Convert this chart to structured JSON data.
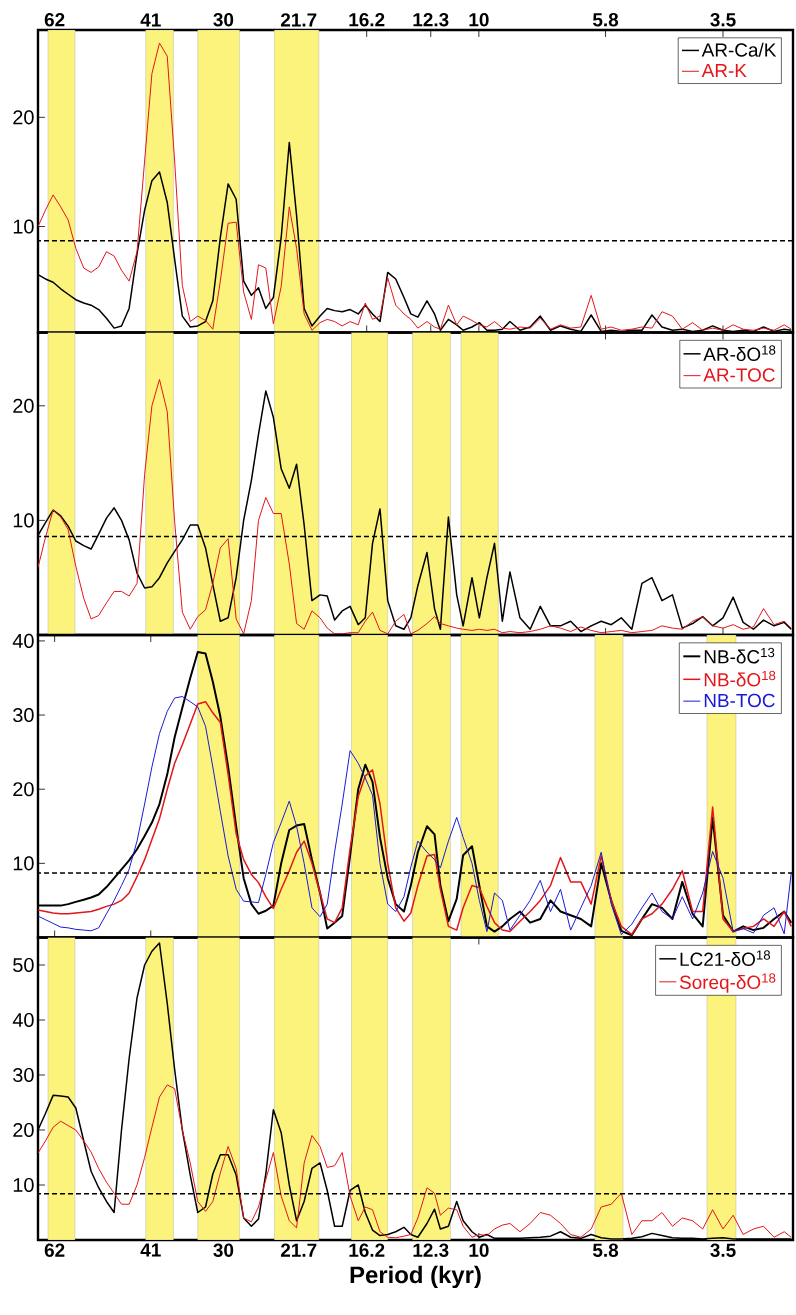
{
  "chart_data": [
    {
      "type": "line",
      "log": "x",
      "legend": "top right",
      "x": [
        66.6,
        64.5,
        62.4,
        60.4,
        58.5,
        56.6,
        54.7,
        53,
        51.3,
        49.6,
        48,
        46.5,
        45,
        43.5,
        42.1,
        40.8,
        39.5,
        38.2,
        37,
        35.8,
        34.6,
        33.5,
        32.4,
        31.4,
        30.4,
        29.4,
        28.4,
        27.5,
        26.6,
        25.8,
        25,
        24.2,
        23.4,
        22.6,
        21.9,
        21.2,
        20.5,
        19.8,
        19.2,
        18.6,
        18,
        17.4,
        16.8,
        16.3,
        15.8,
        15.3,
        14.8,
        14.3,
        13.8,
        13.4,
        13,
        12.5,
        12.1,
        11.8,
        11.4,
        11,
        10.7,
        10.3,
        9.98,
        9.66,
        9.35,
        9.04,
        8.75,
        8.38,
        8.02,
        7.68,
        7.35,
        7.04,
        6.74,
        6.45,
        6.17,
        5.91,
        5.66,
        5.42,
        5.18,
        4.96,
        4.75,
        4.55,
        4.35,
        4.17,
        3.99,
        3.82,
        3.66,
        3.5,
        3.35,
        3.21,
        3.07,
        2.94,
        2.81,
        2.69,
        2.61
      ],
      "series": [
        {
          "name": "AR-Ca/K",
          "color": "#000000",
          "values": [
            5.6,
            5.2,
            4.9,
            4.3,
            3.8,
            3.3,
            3.0,
            2.8,
            2.4,
            1.6,
            0.7,
            0.9,
            2.5,
            7.5,
            11.5,
            14.2,
            15.0,
            12.2,
            7,
            1.8,
            0.8,
            0.9,
            1.3,
            3.2,
            9,
            13.9,
            12.5,
            5,
            3.7,
            4.4,
            2.5,
            3.5,
            9,
            17.7,
            11,
            2.5,
            0.9,
            1.8,
            2.5,
            2.3,
            2.2,
            2.4,
            2.0,
            2.8,
            2.0,
            1.3,
            5.8,
            5.2,
            3.5,
            2.0,
            1.7,
            3.2,
            2.0,
            0.5,
            1.5,
            1.0,
            0.5,
            0.8,
            1.2,
            0.5,
            0.5,
            0.6,
            1.3,
            0.5,
            0.8,
            1.8,
            0.5,
            0.9,
            0.6,
            0.4,
            1.9,
            0.4,
            0.5,
            0.4,
            0.5,
            0.5,
            1.9,
            0.8,
            0.5,
            0.6,
            0.4,
            0.5,
            0.9,
            0.5,
            0.4,
            0.5,
            0.4,
            0.8,
            0.4,
            0.6,
            0.5
          ]
        },
        {
          "name": "AR-K",
          "color": "#e3161b",
          "values": [
            10,
            11.5,
            12.9,
            11.8,
            10.6,
            8,
            6.2,
            5.8,
            6.3,
            7.7,
            7.3,
            6,
            5,
            7.7,
            16,
            24,
            26.8,
            25.6,
            16,
            4.6,
            1.3,
            1.8,
            1.4,
            0.6,
            5,
            10.3,
            10.4,
            4,
            1.5,
            6.5,
            6.2,
            1.1,
            4.5,
            11.8,
            8,
            2,
            0.5,
            1.2,
            1.5,
            1.3,
            0.9,
            1.3,
            1.0,
            3.0,
            1.5,
            1.8,
            5.3,
            2.8,
            2.0,
            1.5,
            0.7,
            1.3,
            0.8,
            0.6,
            2.8,
            1.0,
            1.8,
            1.4,
            1.0,
            0.8,
            1.3,
            0.7,
            0.6,
            0.8,
            0.7,
            1.6,
            0.6,
            1.0,
            0.7,
            0.8,
            3.7,
            0.6,
            0.8,
            0.5,
            0.6,
            0.8,
            0.7,
            2.2,
            1.8,
            0.6,
            1.2,
            0.5,
            0.7,
            0.5,
            1.0,
            0.6,
            0.5,
            0.7,
            0.5,
            1.0,
            0.6
          ]
        }
      ],
      "xlim": [
        66.6,
        2.59
      ],
      "xticks": [
        62,
        41,
        30,
        21.7,
        16.2,
        12.3,
        10,
        5.8,
        3.5
      ],
      "ylim": [
        0.3,
        28
      ],
      "yticks": [
        10,
        20
      ],
      "ref_lines": [
        {
          "axis": "y",
          "value": 8.7,
          "color": "#000000",
          "line_style": "dashed"
        }
      ],
      "bands": [
        {
          "axis": "x",
          "from": 63.8,
          "to": 56.8,
          "color": "#fbf37c"
        },
        {
          "axis": "x",
          "from": 41.9,
          "to": 37.2,
          "color": "#fbf37c"
        },
        {
          "axis": "x",
          "from": 33.5,
          "to": 28.0,
          "color": "#fbf37c"
        },
        {
          "axis": "x",
          "from": 24.1,
          "to": 19.9,
          "color": "#fbf37c"
        }
      ]
    },
    {
      "type": "line",
      "log": "x",
      "legend": "top right",
      "tick_labels": "y",
      "x": [
        66.6,
        64.5,
        62.4,
        60.4,
        58.5,
        56.6,
        54.7,
        53,
        51.3,
        49.6,
        48,
        46.5,
        45,
        43.5,
        42.1,
        40.8,
        39.5,
        38.2,
        37,
        35.8,
        34.6,
        33.5,
        32.4,
        31.4,
        30.4,
        29.4,
        28.4,
        27.5,
        26.6,
        25.8,
        25,
        24.2,
        23.4,
        22.6,
        21.9,
        21.2,
        20.5,
        19.8,
        19.2,
        18.6,
        18,
        17.4,
        16.8,
        16.3,
        15.8,
        15.3,
        14.8,
        14.3,
        13.8,
        13.4,
        13,
        12.5,
        12.1,
        11.8,
        11.4,
        11,
        10.7,
        10.3,
        9.98,
        9.66,
        9.35,
        9.04,
        8.75,
        8.38,
        8.02,
        7.68,
        7.35,
        7.04,
        6.74,
        6.45,
        6.17,
        5.91,
        5.66,
        5.42,
        5.18,
        4.96,
        4.75,
        4.55,
        4.35,
        4.17,
        3.99,
        3.82,
        3.66,
        3.5,
        3.35,
        3.21,
        3.07,
        2.94,
        2.81,
        2.69,
        2.61
      ],
      "series": [
        {
          "name": "AR-δO$^{18}$",
          "color": "#000000",
          "values": [
            8.7,
            9.8,
            10.9,
            10.4,
            9.5,
            8.2,
            7.8,
            7.5,
            8.8,
            10.2,
            11.1,
            10,
            8.3,
            5.4,
            4.1,
            4.2,
            5,
            6.3,
            7.3,
            8.3,
            9.6,
            9.6,
            7.6,
            4.4,
            1.2,
            1.5,
            5,
            10,
            13.5,
            17.5,
            21.3,
            19,
            14.5,
            12.8,
            14.9,
            9.6,
            3,
            3.5,
            3.4,
            1.3,
            2.1,
            2.5,
            0.9,
            1.5,
            8,
            11,
            3,
            0.8,
            0.5,
            1.5,
            4.3,
            7.2,
            2.3,
            0.5,
            10.3,
            3.5,
            0.8,
            5,
            1.5,
            5,
            8,
            1.2,
            5.5,
            1.5,
            0.5,
            2.5,
            0.8,
            0.8,
            1.2,
            0.3,
            0.8,
            1.2,
            0.9,
            1.5,
            0.5,
            4.5,
            5,
            3,
            3.5,
            0.6,
            1.0,
            1.6,
            0.8,
            1.5,
            3.3,
            1.1,
            0.5,
            1.3,
            0.8,
            1.1,
            0.5
          ]
        },
        {
          "name": "AR-TOC",
          "color": "#e3161b",
          "values": [
            5.9,
            8.5,
            10.9,
            10.3,
            9.2,
            6,
            3.2,
            1.4,
            1.7,
            2.8,
            3.8,
            3.8,
            3.4,
            4.5,
            14,
            20,
            22.3,
            19.5,
            9.9,
            2,
            0.5,
            1.6,
            2.2,
            4.5,
            7.6,
            8.4,
            1.4,
            0.1,
            3,
            10,
            12,
            10.6,
            10.6,
            6.2,
            1,
            0.5,
            2.1,
            1.5,
            0.6,
            0.1,
            0.1,
            0.2,
            0.2,
            1.2,
            2.0,
            0.4,
            0.1,
            1.2,
            1.8,
            0.1,
            0.4,
            1.0,
            1.6,
            1.0,
            0.8,
            0.6,
            0.5,
            0.4,
            0.5,
            0.4,
            0.5,
            0.2,
            0.3,
            0.2,
            0.3,
            0.5,
            0.8,
            0.6,
            0.3,
            0.7,
            0.4,
            0.2,
            0.3,
            0.4,
            0.2,
            0.3,
            0.4,
            0.8,
            0.6,
            0.5,
            1.2,
            1.6,
            0.8,
            0.6,
            0.9,
            0.5,
            0.7,
            2.3,
            0.9,
            1.2,
            0.6
          ]
        }
      ],
      "xlim": [
        66.6,
        2.59
      ],
      "xticks": [
        62,
        41,
        30,
        21.7,
        16.2,
        12.3,
        10,
        5.8,
        3.5
      ],
      "ylim": [
        0,
        26.4
      ],
      "yticks": [
        10,
        20
      ],
      "ref_lines": [
        {
          "axis": "y",
          "value": 8.6,
          "color": "#000000",
          "line_style": "dashed"
        }
      ],
      "bands": [
        {
          "axis": "x",
          "from": 63.8,
          "to": 56.8,
          "color": "#fbf37c"
        },
        {
          "axis": "x",
          "from": 41.9,
          "to": 37.2,
          "color": "#fbf37c"
        },
        {
          "axis": "x",
          "from": 33.5,
          "to": 28.0,
          "color": "#fbf37c"
        },
        {
          "axis": "x",
          "from": 24.1,
          "to": 19.9,
          "color": "#fbf37c"
        },
        {
          "axis": "x",
          "from": 17.3,
          "to": 14.8,
          "color": "#fbf37c"
        },
        {
          "axis": "x",
          "from": 13.3,
          "to": 11.3,
          "color": "#fbf37c"
        },
        {
          "axis": "x",
          "from": 10.8,
          "to": 9.2,
          "color": "#fbf37c"
        }
      ]
    },
    {
      "type": "line",
      "log": "x",
      "legend": "top right",
      "tick_labels": "y",
      "x": [
        66.6,
        64.5,
        62.4,
        60.4,
        58.5,
        56.6,
        54.7,
        53,
        51.3,
        49.6,
        48,
        46.5,
        45,
        43.5,
        42.1,
        40.8,
        39.5,
        38.2,
        37,
        35.8,
        34.6,
        33.5,
        32.4,
        31.4,
        30.4,
        29.4,
        28.4,
        27.5,
        26.6,
        25.8,
        25,
        24.2,
        23.4,
        22.6,
        21.9,
        21.2,
        20.5,
        19.8,
        19.2,
        18.6,
        18,
        17.4,
        16.8,
        16.3,
        15.8,
        15.3,
        14.8,
        14.3,
        13.8,
        13.4,
        13,
        12.5,
        12.1,
        11.8,
        11.4,
        11,
        10.7,
        10.3,
        9.98,
        9.66,
        9.35,
        9.04,
        8.75,
        8.38,
        8.02,
        7.68,
        7.35,
        7.04,
        6.74,
        6.45,
        6.17,
        5.91,
        5.66,
        5.42,
        5.18,
        4.96,
        4.75,
        4.55,
        4.35,
        4.17,
        3.99,
        3.82,
        3.66,
        3.5,
        3.35,
        3.21,
        3.07,
        2.94,
        2.81,
        2.69,
        2.61
      ],
      "series": [
        {
          "name": "NB-δC$^{13}$",
          "color": "#000000",
          "values": [
            4.3,
            4.3,
            4.3,
            4.3,
            4.5,
            4.8,
            5.1,
            5.4,
            5.8,
            6.8,
            8.0,
            9.2,
            10.4,
            11.9,
            13.7,
            15.5,
            18,
            22,
            27,
            31,
            35,
            38.5,
            38.3,
            34.5,
            29.8,
            23,
            15,
            8,
            4.5,
            3.2,
            3.6,
            4.3,
            10,
            14.5,
            15.1,
            15.3,
            10.5,
            6,
            1.2,
            2,
            2.9,
            11,
            20,
            23.3,
            21,
            13.5,
            8,
            4.5,
            3.5,
            7,
            11.5,
            15,
            13.9,
            7,
            2.2,
            5.2,
            11.1,
            12.3,
            7,
            1.5,
            0.8,
            1.5,
            2.5,
            3.5,
            2,
            2.5,
            5,
            3.5,
            3,
            2.5,
            1.5,
            10,
            5,
            0.9,
            0.3,
            2.5,
            4.5,
            4,
            2.5,
            7.5,
            3.2,
            1.5,
            16.2,
            3,
            0.8,
            1.5,
            1,
            1.3,
            2.5,
            3.5,
            2
          ]
        },
        {
          "name": "NB-δO$^{18}$",
          "color": "#e3161b",
          "values": [
            3.7,
            3.5,
            3.3,
            3.2,
            3.2,
            3.3,
            3.4,
            3.5,
            3.8,
            4.2,
            4.5,
            5,
            6,
            8.2,
            10.5,
            13.2,
            16,
            20,
            23.5,
            26,
            28.8,
            31.5,
            31.8,
            30.3,
            29,
            22,
            14,
            10.5,
            8.5,
            7.4,
            5.5,
            3.9,
            6.5,
            9,
            11.5,
            13,
            10,
            6,
            2.5,
            2,
            4,
            12,
            19,
            21.8,
            22.6,
            18,
            10,
            4,
            2.2,
            3.3,
            7,
            11,
            11.2,
            6.5,
            1.5,
            1,
            4,
            7,
            6.7,
            4.2,
            2,
            1,
            0.8,
            2.2,
            3.5,
            5,
            7,
            10.8,
            7.5,
            7.5,
            4.5,
            11,
            5,
            1.5,
            0.4,
            2.5,
            3.2,
            4.5,
            6.5,
            9,
            3.5,
            3.5,
            17.6,
            2.5,
            0.8,
            1.2,
            1.5,
            2.5,
            1.5,
            3.5,
            1.5
          ]
        },
        {
          "name": "NB-TOC",
          "color": "#1a1ad6",
          "values": [
            2.9,
            2.4,
            1.9,
            1.4,
            1.3,
            1.1,
            1.0,
            0.9,
            1.3,
            3.2,
            5,
            7,
            9.2,
            13,
            18,
            23,
            27.5,
            30.5,
            32.3,
            32.5,
            31.8,
            31.1,
            28.5,
            23,
            17,
            11,
            6.5,
            4.9,
            4.8,
            4.7,
            8.5,
            12.8,
            15.5,
            18.4,
            15,
            10,
            4,
            2.8,
            4.5,
            11.5,
            18,
            25.2,
            23.5,
            21.5,
            19.2,
            10,
            4.5,
            3.5,
            5.5,
            9.5,
            13,
            11.5,
            10.5,
            9.4,
            13,
            16.2,
            13.5,
            10,
            5,
            0.8,
            6,
            5,
            1,
            3,
            5,
            7.7,
            3.5,
            6.5,
            1.0,
            4,
            7,
            11.5,
            4.5,
            0.4,
            1.8,
            4,
            6,
            3.5,
            2.5,
            5.5,
            2.5,
            6,
            11.6,
            8,
            0.8,
            1.2,
            0.6,
            3,
            4,
            0.5,
            8.7
          ]
        }
      ],
      "xlim": [
        66.6,
        2.59
      ],
      "xticks": [
        62,
        41,
        30,
        21.7,
        16.2,
        12.3,
        10,
        5.8,
        3.5
      ],
      "ylim": [
        0,
        40.8
      ],
      "yticks": [
        10,
        20,
        30,
        40
      ],
      "ref_lines": [
        {
          "axis": "y",
          "value": 8.7,
          "color": "#000000",
          "line_style": "dashed"
        }
      ],
      "bands": [
        {
          "axis": "x",
          "from": 33.5,
          "to": 28.0,
          "color": "#fbf37c"
        },
        {
          "axis": "x",
          "from": 24.1,
          "to": 19.9,
          "color": "#fbf37c"
        },
        {
          "axis": "x",
          "from": 17.3,
          "to": 14.8,
          "color": "#fbf37c"
        },
        {
          "axis": "x",
          "from": 13.3,
          "to": 11.3,
          "color": "#fbf37c"
        },
        {
          "axis": "x",
          "from": 10.8,
          "to": 9.2,
          "color": "#fbf37c"
        },
        {
          "axis": "x",
          "from": 6.07,
          "to": 5.38,
          "color": "#fbf37c"
        },
        {
          "axis": "x",
          "from": 3.75,
          "to": 3.31,
          "color": "#fbf37c"
        }
      ]
    },
    {
      "type": "line",
      "log": "x",
      "legend": "top right",
      "xlabel": "Period (kyr)",
      "x": [
        66.6,
        64.5,
        62.4,
        60.4,
        58.5,
        56.6,
        54.7,
        53,
        51.3,
        49.6,
        48,
        46.5,
        45,
        43.5,
        42.1,
        40.8,
        39.5,
        38.2,
        37,
        35.8,
        34.6,
        33.5,
        32.4,
        31.4,
        30.4,
        29.4,
        28.4,
        27.5,
        26.6,
        25.8,
        25,
        24.2,
        23.4,
        22.6,
        21.9,
        21.2,
        20.5,
        19.8,
        19.2,
        18.6,
        18,
        17.4,
        16.8,
        16.3,
        15.8,
        15.3,
        14.8,
        14.3,
        13.8,
        13.4,
        13,
        12.5,
        12.1,
        11.8,
        11.4,
        11,
        10.7,
        10.3,
        9.98,
        9.66,
        9.35,
        9.04,
        8.75,
        8.38,
        8.02,
        7.68,
        7.35,
        7.04,
        6.74,
        6.45,
        6.17,
        5.91,
        5.66,
        5.42,
        5.18,
        4.96,
        4.75,
        4.55,
        4.35,
        4.17,
        3.99,
        3.82,
        3.66,
        3.5,
        3.35,
        3.21,
        3.07,
        2.94,
        2.81,
        2.69,
        2.61
      ],
      "series": [
        {
          "name": "LC21-δO$^{18}$",
          "color": "#000000",
          "values": [
            20,
            23,
            26.3,
            26.2,
            26,
            24,
            18,
            12.5,
            9.5,
            7,
            5,
            20,
            33,
            44,
            50,
            52.5,
            54,
            43,
            31,
            20,
            11.8,
            5,
            6,
            12,
            15.5,
            15.5,
            11.8,
            4,
            2.5,
            3.8,
            12,
            23.7,
            19.5,
            10,
            3.5,
            7,
            13,
            14,
            9,
            2.5,
            2.5,
            9,
            10,
            5,
            1.8,
            0.8,
            1.0,
            1.5,
            2.3,
            1.0,
            0.5,
            3,
            5.6,
            2,
            2.5,
            7,
            3.5,
            1.5,
            0.5,
            1,
            0.3,
            0.3,
            0.3,
            0.3,
            0.4,
            0.5,
            0.7,
            1.5,
            0.5,
            0.3,
            1.0,
            0.4,
            0.2,
            0.2,
            0.3,
            0.6,
            1.2,
            0.8,
            0.4,
            0.3,
            0.3,
            0.2,
            0.3,
            0.4,
            0.2,
            0.2,
            0.2,
            0.2,
            0.2,
            0.2,
            0.2
          ]
        },
        {
          "name": "Soreq-δO$^{18}$",
          "color": "#e3161b",
          "values": [
            15.8,
            18,
            20.5,
            21.6,
            20.8,
            20,
            18,
            16,
            13,
            10.5,
            8.5,
            6.5,
            6.5,
            10,
            15,
            20.5,
            26,
            28.2,
            27.5,
            20,
            14,
            7,
            5.2,
            7,
            12.2,
            17,
            13,
            4,
            3.3,
            6,
            11,
            15.9,
            8,
            3.5,
            2.2,
            14,
            19,
            17,
            13.2,
            13.5,
            15.9,
            8,
            3.5,
            6,
            5.5,
            1.5,
            0.5,
            0.4,
            0.7,
            1.0,
            4,
            9.5,
            8.5,
            4.5,
            5.8,
            5.5,
            2.5,
            0.5,
            1,
            0.8,
            2,
            2.7,
            3,
            1.5,
            3,
            5,
            4.5,
            3,
            1,
            0.5,
            2,
            6,
            6.5,
            8.5,
            1,
            3.5,
            3.5,
            5,
            2.5,
            4,
            3.5,
            2,
            5.5,
            2,
            4.5,
            1,
            2,
            2.5,
            0.5,
            1.5,
            0.5
          ]
        }
      ],
      "xlim": [
        66.6,
        2.59
      ],
      "xticks": [
        62,
        41,
        30,
        21.7,
        16.2,
        12.3,
        10,
        5.8,
        3.5
      ],
      "ylim": [
        0,
        55
      ],
      "yticks": [
        10,
        20,
        30,
        40,
        50
      ],
      "ref_lines": [
        {
          "axis": "y",
          "value": 8.4,
          "color": "#000000",
          "line_style": "dashed"
        }
      ],
      "bands": [
        {
          "axis": "x",
          "from": 63.8,
          "to": 56.8,
          "color": "#fbf37c"
        },
        {
          "axis": "x",
          "from": 41.9,
          "to": 37.2,
          "color": "#fbf37c"
        },
        {
          "axis": "x",
          "from": 33.5,
          "to": 28.0,
          "color": "#fbf37c"
        },
        {
          "axis": "x",
          "from": 24.1,
          "to": 19.9,
          "color": "#fbf37c"
        },
        {
          "axis": "x",
          "from": 17.3,
          "to": 14.8,
          "color": "#fbf37c"
        },
        {
          "axis": "x",
          "from": 13.3,
          "to": 11.3,
          "color": "#fbf37c"
        },
        {
          "axis": "x",
          "from": 6.07,
          "to": 5.38,
          "color": "#fbf37c"
        },
        {
          "axis": "x",
          "from": 3.75,
          "to": 3.31,
          "color": "#fbf37c"
        }
      ]
    }
  ]
}
